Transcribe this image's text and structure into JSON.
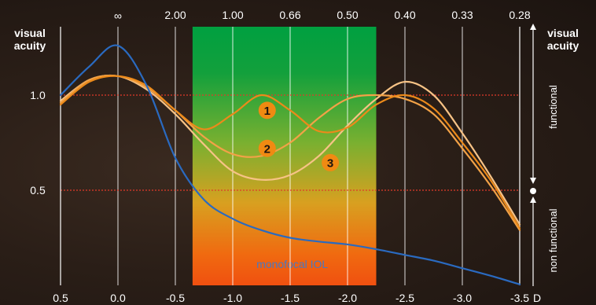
{
  "chart_data": {
    "type": "line",
    "xlabel": "D",
    "ylabel": "visual acuity",
    "right_ylabel": "visual acuity",
    "xlim": [
      0.5,
      -3.5
    ],
    "ylim": [
      0,
      1.35
    ],
    "x_ticks": [
      {
        "value": 0.5,
        "label": "0.5"
      },
      {
        "value": 0.0,
        "label": "0.0"
      },
      {
        "value": -0.5,
        "label": "-0.5"
      },
      {
        "value": -1.0,
        "label": "-1.0"
      },
      {
        "value": -1.5,
        "label": "-1.5"
      },
      {
        "value": -2.0,
        "label": "-2.0"
      },
      {
        "value": -2.5,
        "label": "-2.5"
      },
      {
        "value": -3.0,
        "label": "-3.0"
      },
      {
        "value": -3.5,
        "label": "-3.5"
      }
    ],
    "top_ticks": [
      {
        "value": 0.0,
        "label": "∞"
      },
      {
        "value": -0.5,
        "label": "2.00"
      },
      {
        "value": -1.0,
        "label": "1.00"
      },
      {
        "value": -1.5,
        "label": "0.66"
      },
      {
        "value": -2.0,
        "label": "0.50"
      },
      {
        "value": -2.5,
        "label": "0.40"
      },
      {
        "value": -3.0,
        "label": "0.33"
      },
      {
        "value": -3.5,
        "label": "0.28"
      }
    ],
    "y_ticks": [
      {
        "value": 1.0,
        "label": "1.0"
      },
      {
        "value": 0.5,
        "label": "0.5"
      }
    ],
    "reference_lines": [
      1.0,
      0.5
    ],
    "highlight_band": {
      "x_from": -0.65,
      "x_to": -2.25,
      "label": "monofocal IOL"
    },
    "right_annotations": {
      "upper": "functional",
      "lower": "non functional"
    },
    "series": [
      {
        "id": "monofocal",
        "color": "#2a6ac0",
        "x": [
          0.5,
          0.25,
          0.0,
          -0.25,
          -0.5,
          -0.75,
          -1.0,
          -1.25,
          -1.5,
          -1.75,
          -2.0,
          -2.25,
          -2.5,
          -2.75,
          -3.0,
          -3.25,
          -3.5
        ],
        "y": [
          1.0,
          1.15,
          1.26,
          1.05,
          0.67,
          0.45,
          0.35,
          0.29,
          0.25,
          0.23,
          0.215,
          0.19,
          0.16,
          0.13,
          0.09,
          0.05,
          0.005
        ]
      },
      {
        "id": "1",
        "color": "#ec8a1a",
        "x": [
          0.5,
          0.25,
          0.0,
          -0.25,
          -0.5,
          -0.75,
          -1.0,
          -1.25,
          -1.5,
          -1.75,
          -2.0,
          -2.25,
          -2.5,
          -2.75,
          -3.0,
          -3.25,
          -3.5
        ],
        "y": [
          0.95,
          1.07,
          1.1,
          1.05,
          0.92,
          0.82,
          0.9,
          1.0,
          0.92,
          0.81,
          0.83,
          0.95,
          1.0,
          0.93,
          0.75,
          0.55,
          0.3
        ]
      },
      {
        "id": "2",
        "color": "#f2a247",
        "x": [
          0.5,
          0.25,
          0.0,
          -0.25,
          -0.5,
          -0.75,
          -1.0,
          -1.25,
          -1.5,
          -1.75,
          -2.0,
          -2.25,
          -2.5,
          -2.75,
          -3.0,
          -3.25,
          -3.5
        ],
        "y": [
          0.96,
          1.08,
          1.1,
          1.04,
          0.92,
          0.78,
          0.69,
          0.68,
          0.75,
          0.88,
          0.98,
          1.0,
          0.98,
          0.9,
          0.72,
          0.52,
          0.29
        ]
      },
      {
        "id": "3",
        "color": "#f7c386",
        "x": [
          0.5,
          0.25,
          0.0,
          -0.25,
          -0.5,
          -0.75,
          -1.0,
          -1.25,
          -1.5,
          -1.75,
          -2.0,
          -2.25,
          -2.5,
          -2.75,
          -3.0,
          -3.25,
          -3.5
        ],
        "y": [
          0.97,
          1.08,
          1.1,
          1.03,
          0.9,
          0.74,
          0.6,
          0.555,
          0.58,
          0.68,
          0.84,
          0.98,
          1.07,
          1.0,
          0.8,
          0.57,
          0.32
        ]
      }
    ],
    "markers": [
      {
        "label": "1",
        "x": -1.3,
        "y": 0.92
      },
      {
        "label": "2",
        "x": -1.3,
        "y": 0.72
      },
      {
        "label": "3",
        "x": -1.85,
        "y": 0.645
      }
    ]
  }
}
